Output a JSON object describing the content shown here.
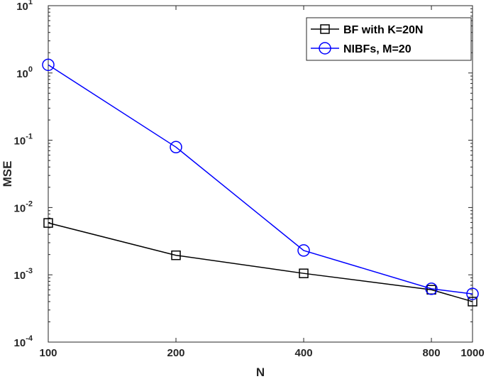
{
  "chart_data": {
    "type": "line",
    "title": "",
    "xlabel": "N",
    "ylabel": "MSE",
    "x_scale": "log",
    "y_scale": "log",
    "xlim": [
      100,
      1000
    ],
    "ylim": [
      0.0001,
      10
    ],
    "x_ticks": [
      100,
      200,
      400,
      800,
      1000
    ],
    "x_tick_labels": [
      "100",
      "200",
      "400",
      "800",
      "1000"
    ],
    "y_ticks": [
      {
        "value": 10,
        "base": "10",
        "exp": "1"
      },
      {
        "value": 1,
        "base": "10",
        "exp": "0"
      },
      {
        "value": 0.1,
        "base": "10",
        "exp": "-1"
      },
      {
        "value": 0.01,
        "base": "10",
        "exp": "-2"
      },
      {
        "value": 0.001,
        "base": "10",
        "exp": "-3"
      },
      {
        "value": 0.0001,
        "base": "10",
        "exp": "-4"
      }
    ],
    "grid": false,
    "legend_position": "top-right",
    "x": [
      100,
      200,
      400,
      800,
      1000
    ],
    "series": [
      {
        "name": "BF with K=20N",
        "color": "#000000",
        "marker": "square",
        "values": [
          0.0059,
          0.00195,
          0.00105,
          0.0006,
          0.0004
        ]
      },
      {
        "name": "NIBFs, M=20",
        "color": "#0000ff",
        "marker": "circle",
        "values": [
          1.32,
          0.079,
          0.0023,
          0.00062,
          0.00052
        ]
      }
    ]
  }
}
